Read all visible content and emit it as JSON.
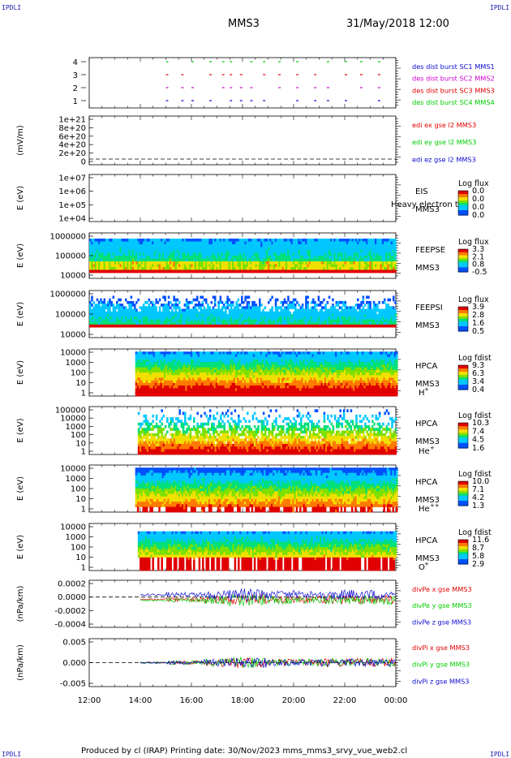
{
  "header": {
    "corner_left_top": "IPDLI",
    "corner_right_top": "IPDLI",
    "corner_left_bottom": "IPDLI",
    "corner_right_bottom": "IPDLI",
    "spacecraft": "MMS3",
    "datetime": "31/May/2018 12:00"
  },
  "footer": {
    "text": "Produced by cl (IRAP)   Printing date: 30/Nov/2023   mms_mms3_srvy_vue_web2.cl"
  },
  "colors": {
    "blue": "#0a0ad2",
    "magenta": "#d000d0",
    "red": "#e00000",
    "green": "#00cc00",
    "axis": "#000000"
  },
  "chart_data": [
    {
      "id": "burst",
      "type": "scatter",
      "ylabel": "",
      "yticks": [
        "4",
        "3",
        "2",
        "1"
      ],
      "legend": [
        {
          "label": "des dist burst SC1 MMS1",
          "color": "#0a0ad2"
        },
        {
          "label": "des dist burst SC2 MMS2",
          "color": "#d000d0"
        },
        {
          "label": "des dist burst SC3 MMS3",
          "color": "#e00000"
        },
        {
          "label": "des dist burst SC4 MMS4",
          "color": "#00cc00"
        }
      ]
    },
    {
      "id": "edi",
      "type": "line",
      "ylabel": "(mV/m)",
      "yticks": [
        "1e+21",
        "8e+20",
        "6e+20",
        "4e+20",
        "2e+20",
        "0"
      ],
      "legend": [
        {
          "label": "edi ex gse l2 MMS3",
          "color": "#e00000"
        },
        {
          "label": "edi ey gse l2 MMS3",
          "color": "#00cc00"
        },
        {
          "label": "edi ez gse l2 MMS3",
          "color": "#0a0ad2"
        }
      ]
    },
    {
      "id": "eis",
      "type": "heatmap",
      "ylabel": "E (eV)",
      "yticks": [
        "1e+07",
        "1e+06",
        "1e+05",
        "1e+04"
      ],
      "instrument": "EIS",
      "overlay_text": "Heavy electron to",
      "sc": "MMS3",
      "species": "",
      "cb_title": "Log flux",
      "cb_ticks": [
        "0.0",
        "0.0",
        "0.0",
        "0.0"
      ]
    },
    {
      "id": "feepse",
      "type": "heatmap",
      "ylabel": "E (eV)",
      "yticks": [
        "1000000",
        "100000",
        "10000"
      ],
      "instrument": "FEEPSE",
      "sc": "MMS3",
      "species": "",
      "cb_title": "Log flux",
      "cb_ticks": [
        "3.3",
        "2.1",
        "0.8",
        "-0.5"
      ]
    },
    {
      "id": "feepsi",
      "type": "heatmap",
      "ylabel": "E (eV)",
      "yticks": [
        "1000000",
        "100000",
        "10000"
      ],
      "instrument": "FEEPSI",
      "sc": "MMS3",
      "species": "",
      "cb_title": "Log flux",
      "cb_ticks": [
        "3.9",
        "2.8",
        "1.6",
        "0.5"
      ]
    },
    {
      "id": "hpca_h",
      "type": "heatmap",
      "ylabel": "E (eV)",
      "yticks": [
        "10000",
        "1000",
        "100",
        "10",
        "1"
      ],
      "instrument": "HPCA",
      "sc": "MMS3",
      "species": "H",
      "species_sup": "+",
      "cb_title": "Log fdist",
      "cb_ticks": [
        "9.3",
        "6.3",
        "3.4",
        "0.4"
      ]
    },
    {
      "id": "hpca_he1",
      "type": "heatmap",
      "ylabel": "E (eV)",
      "yticks": [
        "100000",
        "10000",
        "1000",
        "100",
        "10",
        "1"
      ],
      "instrument": "HPCA",
      "sc": "MMS3",
      "species": "He",
      "species_sup": "+",
      "cb_title": "Log fdist",
      "cb_ticks": [
        "10.3",
        "7.4",
        "4.5",
        "1.6"
      ]
    },
    {
      "id": "hpca_he2",
      "type": "heatmap",
      "ylabel": "E (eV)",
      "yticks": [
        "10000",
        "1000",
        "100",
        "10",
        "1"
      ],
      "instrument": "HPCA",
      "sc": "MMS3",
      "species": "He",
      "species_sup": "++",
      "cb_title": "Log fdist",
      "cb_ticks": [
        "10.0",
        "7.1",
        "4.2",
        "1.3"
      ]
    },
    {
      "id": "hpca_o",
      "type": "heatmap",
      "ylabel": "E (eV)",
      "yticks": [
        "10000",
        "1000",
        "100",
        "10",
        "1"
      ],
      "instrument": "HPCA",
      "sc": "MMS3",
      "species": "O",
      "species_sup": "+",
      "cb_title": "Log fdist",
      "cb_ticks": [
        "11.6",
        "8.7",
        "5.8",
        "2.9"
      ]
    },
    {
      "id": "divpe",
      "type": "line",
      "ylabel": "(nPa/km)",
      "yticks": [
        "0.0002",
        "0.0000",
        "-0.0002",
        "-0.0004"
      ],
      "legend": [
        {
          "label": "divPe x gse MMS3",
          "color": "#e00000"
        },
        {
          "label": "divPe y gse MMS3",
          "color": "#00cc00"
        },
        {
          "label": "divPe z gse MMS3",
          "color": "#0a0ad2"
        }
      ]
    },
    {
      "id": "divpi",
      "type": "line",
      "ylabel": "(nPa/km)",
      "yticks": [
        "0.005",
        "0.000",
        "-0.005"
      ],
      "legend": [
        {
          "label": "divPi x gse MMS3",
          "color": "#e00000"
        },
        {
          "label": "divPi y gse MMS3",
          "color": "#00cc00"
        },
        {
          "label": "divPi z gse MMS3",
          "color": "#0a0ad2"
        }
      ]
    }
  ],
  "time_axis": {
    "ticks": [
      "12:00",
      "14:00",
      "16:00",
      "18:00",
      "20:00",
      "22:00",
      "00:00"
    ]
  }
}
